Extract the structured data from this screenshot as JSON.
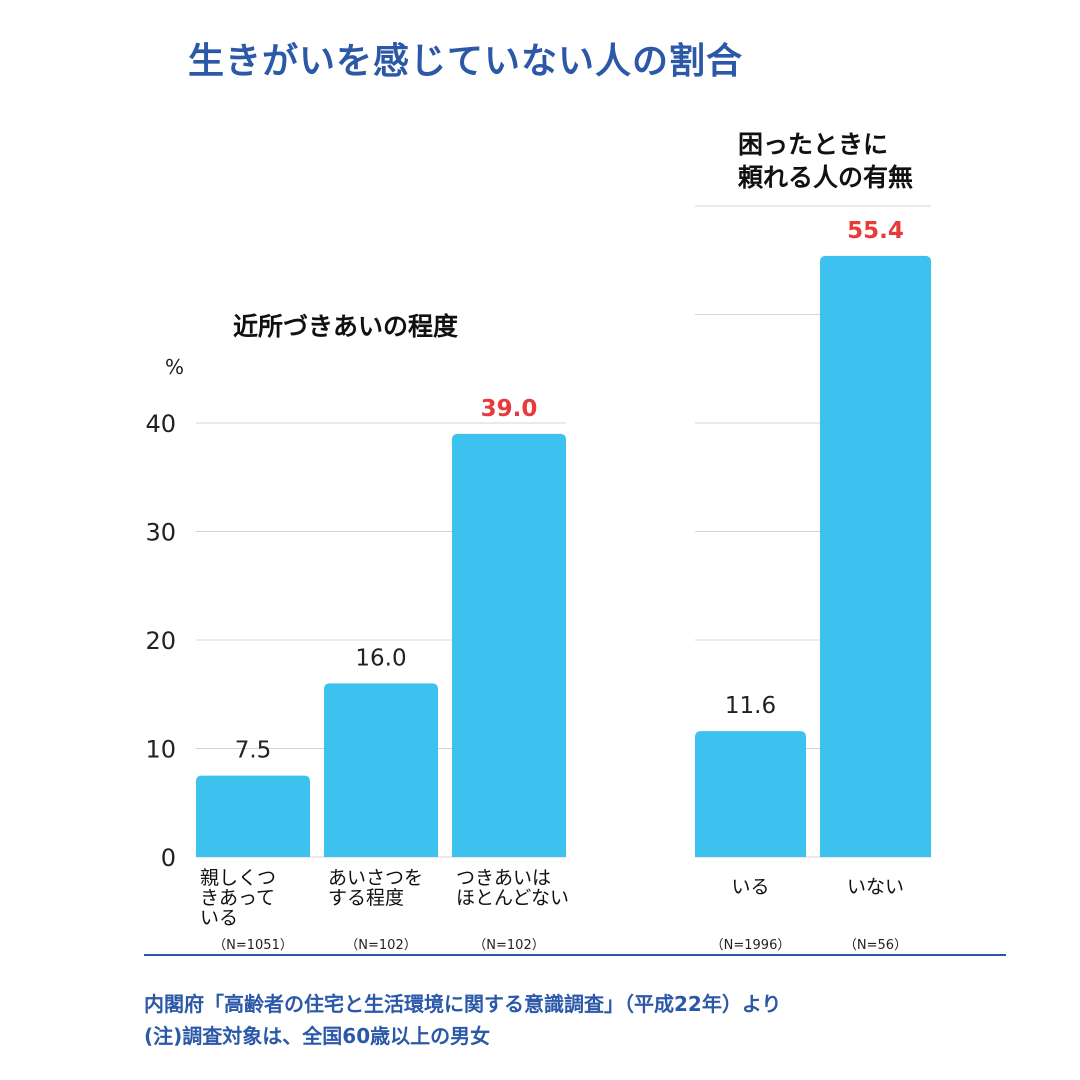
{
  "title": "生きがいを感じていない人の割合",
  "chart_data": [
    {
      "type": "bar",
      "title": "近所づきあいの程度",
      "ylabel": "%",
      "ylim": [
        0,
        40
      ],
      "yticks": [
        0,
        10,
        20,
        30,
        40
      ],
      "grid": true,
      "categories": [
        [
          "親しくつ",
          "きあって",
          "いる"
        ],
        [
          "あいさつを",
          "する程度"
        ],
        [
          "つきあいは",
          "ほとんどない"
        ]
      ],
      "n_labels": [
        "（N=1051）",
        "（N=102）",
        "（N=102）"
      ],
      "values": [
        7.5,
        16.0,
        39.0
      ],
      "value_labels": [
        "7.5",
        "16.0",
        "39.0"
      ],
      "highlight_index": 2
    },
    {
      "type": "bar",
      "title": [
        "困ったときに",
        "頼れる人の有無"
      ],
      "grid": true,
      "categories": [
        [
          "いる"
        ],
        [
          "いない"
        ]
      ],
      "n_labels": [
        "（N=1996）",
        "（N=56）"
      ],
      "values": [
        11.6,
        55.4
      ],
      "value_labels": [
        "11.6",
        "55.4"
      ],
      "highlight_index": 1
    }
  ],
  "colors": {
    "bar": "#3dc1ef",
    "highlight_text": "#e8393b",
    "value_text": "#222222",
    "grid": "#d4d4d4",
    "accent": "#2b59a8"
  },
  "footnotes": [
    "内閣府「高齢者の住宅と生活環境に関する意識調査」（平成22年）より",
    "(注)調査対象は、全国60歳以上の男女"
  ]
}
